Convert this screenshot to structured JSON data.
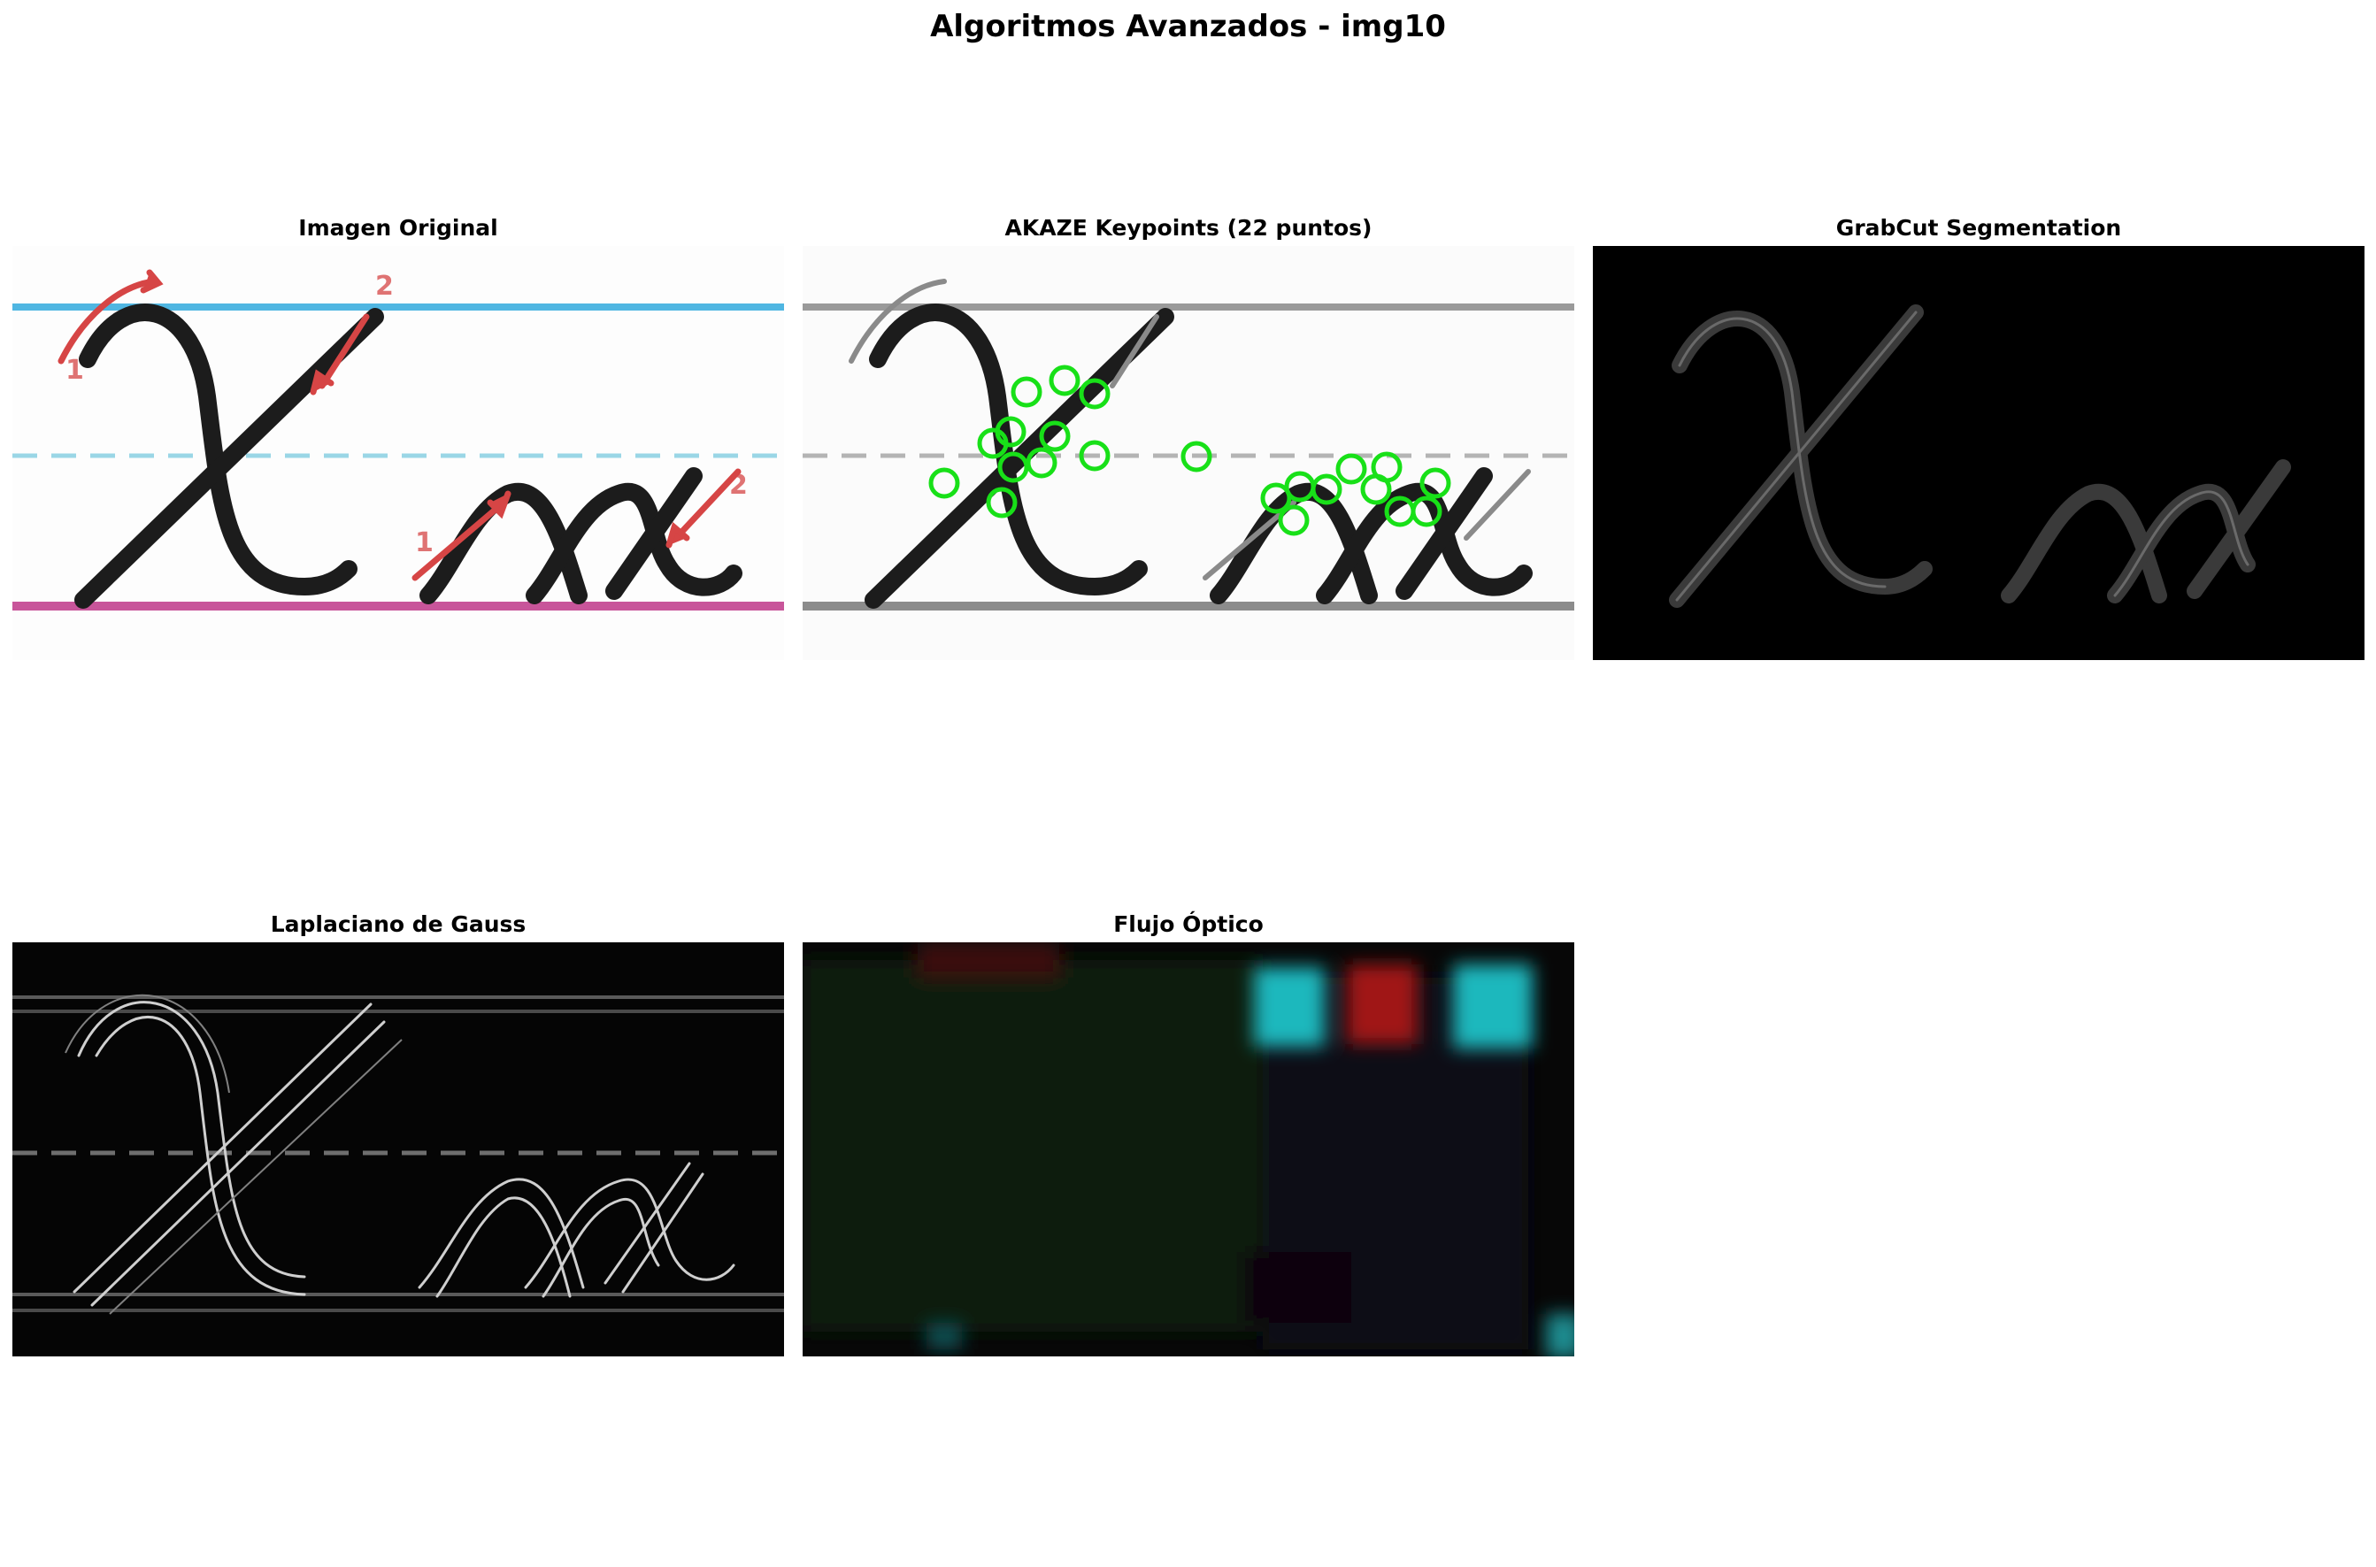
{
  "figure": {
    "title": "Algoritmos Avanzados - img10"
  },
  "panels": [
    {
      "title": "Imagen Original",
      "image": "cursive-letter-x-worksheet"
    },
    {
      "title": "AKAZE Keypoints (22 puntos)",
      "image": "grayscale-with-green-keypoint-circles"
    },
    {
      "title": "GrabCut Segmentation",
      "image": "segmented-letters-on-black"
    },
    {
      "title": "Laplaciano de Gauss",
      "image": "edge-response-grayscale"
    },
    {
      "title": "Flujo Óptico",
      "image": "optical-flow-hsv-dark"
    }
  ],
  "worksheet": {
    "stroke_labels": [
      "1",
      "2",
      "1",
      "2"
    ]
  },
  "colors": {
    "top_line": "#4fb6e2",
    "mid_dash": "#9ad6e6",
    "base_line": "#c8559a",
    "ink": "#1c1c1c",
    "arrow": "#d64545",
    "keypoint": "#18e018",
    "flow_cyan": "#1fb8bd",
    "flow_red": "#a01212"
  }
}
